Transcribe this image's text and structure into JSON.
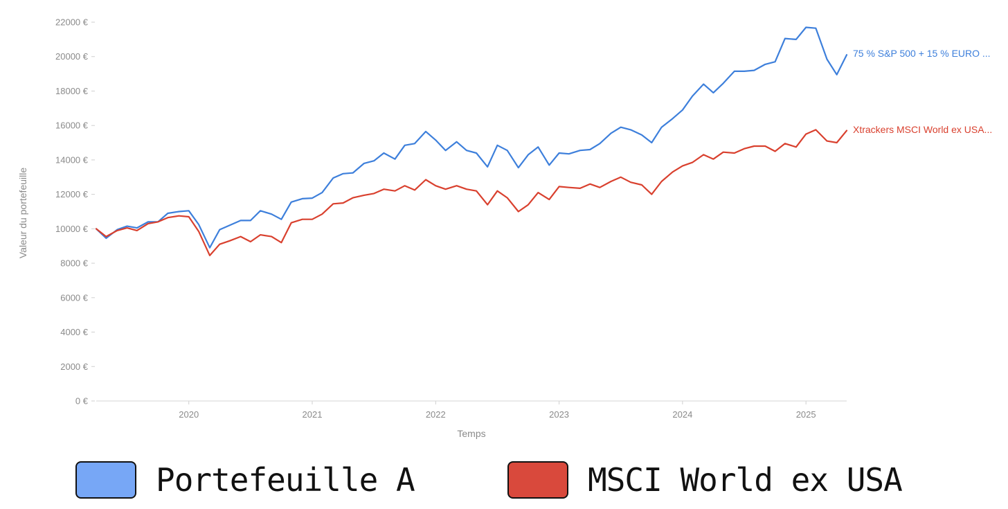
{
  "chart_data": {
    "type": "line",
    "xlabel": "Temps",
    "ylabel": "Valeur du portefeuille",
    "ylim": [
      0,
      22000
    ],
    "xlim": [
      2019.25,
      2025.33
    ],
    "y_ticks": [
      0,
      2000,
      4000,
      6000,
      8000,
      10000,
      12000,
      14000,
      16000,
      18000,
      20000,
      22000
    ],
    "y_tick_labels": [
      "0 €",
      "2000 €",
      "4000 €",
      "6000 €",
      "8000 €",
      "10000 €",
      "12000 €",
      "14000 €",
      "16000 €",
      "18000 €",
      "20000 €",
      "22000 €"
    ],
    "x_ticks": [
      2020,
      2021,
      2022,
      2023,
      2024,
      2025
    ],
    "x_tick_labels": [
      "2020",
      "2021",
      "2022",
      "2023",
      "2024",
      "2025"
    ],
    "grid": false,
    "series": [
      {
        "name": "75 % S&P 500 + 15 % EURO ...",
        "color": "#3d7fdb",
        "x": [
          2019.25,
          2019.33,
          2019.42,
          2019.5,
          2019.58,
          2019.67,
          2019.75,
          2019.83,
          2019.92,
          2020.0,
          2020.08,
          2020.17,
          2020.25,
          2020.33,
          2020.42,
          2020.5,
          2020.58,
          2020.67,
          2020.75,
          2020.83,
          2020.92,
          2021.0,
          2021.08,
          2021.17,
          2021.25,
          2021.33,
          2021.42,
          2021.5,
          2021.58,
          2021.67,
          2021.75,
          2021.83,
          2021.92,
          2022.0,
          2022.08,
          2022.17,
          2022.25,
          2022.33,
          2022.42,
          2022.5,
          2022.58,
          2022.67,
          2022.75,
          2022.83,
          2022.92,
          2023.0,
          2023.08,
          2023.17,
          2023.25,
          2023.33,
          2023.42,
          2023.5,
          2023.58,
          2023.67,
          2023.75,
          2023.83,
          2023.92,
          2024.0,
          2024.08,
          2024.17,
          2024.25,
          2024.33,
          2024.42,
          2024.5,
          2024.58,
          2024.67,
          2024.75,
          2024.83,
          2024.92,
          2025.0,
          2025.08,
          2025.17,
          2025.25,
          2025.33
        ],
        "values": [
          10000,
          9450,
          9950,
          10150,
          10050,
          10400,
          10400,
          10900,
          11000,
          11050,
          10250,
          8900,
          9950,
          10200,
          10480,
          10480,
          11050,
          10850,
          10550,
          11550,
          11750,
          11780,
          12100,
          12950,
          13200,
          13250,
          13800,
          13950,
          14400,
          14050,
          14850,
          14950,
          15650,
          15150,
          14550,
          15050,
          14550,
          14400,
          13600,
          14850,
          14550,
          13550,
          14300,
          14750,
          13700,
          14400,
          14350,
          14550,
          14600,
          14950,
          15550,
          15900,
          15750,
          15450,
          15000,
          15900,
          16400,
          16900,
          17700,
          18400,
          17900,
          18450,
          19150,
          19150,
          19200,
          19550,
          19700,
          21050,
          21000,
          21700,
          21650,
          19850,
          18950,
          20100
        ]
      },
      {
        "name": "Xtrackers MSCI World ex USA...",
        "color": "#d9402e",
        "x": [
          2019.25,
          2019.33,
          2019.42,
          2019.5,
          2019.58,
          2019.67,
          2019.75,
          2019.83,
          2019.92,
          2020.0,
          2020.08,
          2020.17,
          2020.25,
          2020.33,
          2020.42,
          2020.5,
          2020.58,
          2020.67,
          2020.75,
          2020.83,
          2020.92,
          2021.0,
          2021.08,
          2021.17,
          2021.25,
          2021.33,
          2021.42,
          2021.5,
          2021.58,
          2021.67,
          2021.75,
          2021.83,
          2021.92,
          2022.0,
          2022.08,
          2022.17,
          2022.25,
          2022.33,
          2022.42,
          2022.5,
          2022.58,
          2022.67,
          2022.75,
          2022.83,
          2022.92,
          2023.0,
          2023.08,
          2023.17,
          2023.25,
          2023.33,
          2023.42,
          2023.5,
          2023.58,
          2023.67,
          2023.75,
          2023.83,
          2023.92,
          2024.0,
          2024.08,
          2024.17,
          2024.25,
          2024.33,
          2024.42,
          2024.5,
          2024.58,
          2024.67,
          2024.75,
          2024.83,
          2024.92,
          2025.0,
          2025.08,
          2025.17,
          2025.25,
          2025.33
        ],
        "values": [
          10000,
          9550,
          9900,
          10050,
          9900,
          10300,
          10400,
          10650,
          10750,
          10700,
          9850,
          8450,
          9100,
          9300,
          9550,
          9250,
          9650,
          9550,
          9200,
          10350,
          10550,
          10550,
          10850,
          11450,
          11500,
          11800,
          11950,
          12050,
          12300,
          12200,
          12500,
          12250,
          12850,
          12500,
          12300,
          12500,
          12300,
          12200,
          11400,
          12200,
          11800,
          11000,
          11400,
          12100,
          11700,
          12450,
          12400,
          12350,
          12600,
          12400,
          12750,
          13000,
          12700,
          12550,
          12000,
          12750,
          13300,
          13650,
          13850,
          14300,
          14050,
          14450,
          14400,
          14650,
          14800,
          14800,
          14500,
          14950,
          14750,
          15500,
          15750,
          15100,
          15000,
          15700
        ]
      }
    ]
  },
  "legend": {
    "item1": {
      "label": "Portefeuille A",
      "color": "#77a7f6"
    },
    "item2": {
      "label": "MSCI World ex USA",
      "color": "#d9493c"
    }
  }
}
